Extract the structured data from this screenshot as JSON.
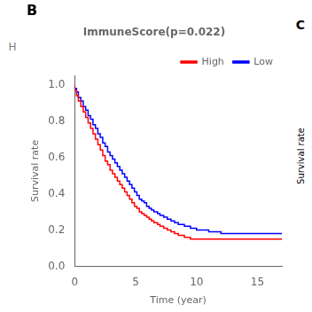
{
  "chart_data": {
    "type": "line",
    "line_style": "step",
    "title": "ImmuneScore(p=0.022)",
    "xlabel": "Time (year)",
    "ylabel": "Survival rate",
    "annotations": [
      "B",
      "H",
      "C",
      "Survival rate"
    ],
    "xlim": [
      0,
      17
    ],
    "ylim": [
      0.0,
      1.05
    ],
    "xticks": [
      0,
      5,
      10,
      15
    ],
    "yticks": [
      {
        "value": 0.0,
        "label": "0.0"
      },
      0.2,
      0.4,
      0.6,
      0.8,
      {
        "value": 1.0,
        "label": "1.0"
      }
    ],
    "grid": false,
    "legend": "upper right",
    "x": [
      0,
      0.15,
      0.3,
      0.5,
      0.7,
      0.9,
      1.1,
      1.3,
      1.5,
      1.7,
      1.9,
      2.1,
      2.3,
      2.5,
      2.7,
      2.9,
      3.1,
      3.3,
      3.5,
      3.7,
      3.9,
      4.1,
      4.3,
      4.5,
      4.7,
      4.9,
      5.1,
      5.3,
      5.5,
      5.7,
      5.9,
      6.1,
      6.3,
      6.5,
      6.8,
      7.0,
      7.3,
      7.6,
      7.9,
      8.2,
      8.5,
      9.0,
      9.5,
      10.0,
      11.0,
      12.0,
      15.0,
      17.0
    ],
    "series": [
      {
        "name": "High",
        "color": "#FF0000",
        "values": [
          1.0,
          0.97,
          0.94,
          0.91,
          0.88,
          0.85,
          0.82,
          0.79,
          0.76,
          0.73,
          0.7,
          0.67,
          0.64,
          0.61,
          0.58,
          0.56,
          0.53,
          0.51,
          0.49,
          0.47,
          0.45,
          0.43,
          0.41,
          0.39,
          0.37,
          0.35,
          0.33,
          0.32,
          0.3,
          0.29,
          0.28,
          0.27,
          0.26,
          0.25,
          0.24,
          0.23,
          0.22,
          0.21,
          0.2,
          0.19,
          0.18,
          0.17,
          0.16,
          0.15,
          0.15,
          0.15,
          0.15,
          0.15
        ]
      },
      {
        "name": "Low",
        "color": "#0000FF",
        "values": [
          1.0,
          0.98,
          0.96,
          0.93,
          0.91,
          0.88,
          0.86,
          0.83,
          0.81,
          0.78,
          0.76,
          0.73,
          0.71,
          0.68,
          0.66,
          0.63,
          0.61,
          0.59,
          0.57,
          0.55,
          0.53,
          0.51,
          0.49,
          0.47,
          0.45,
          0.43,
          0.41,
          0.39,
          0.37,
          0.36,
          0.35,
          0.33,
          0.32,
          0.31,
          0.3,
          0.29,
          0.28,
          0.27,
          0.26,
          0.25,
          0.24,
          0.23,
          0.22,
          0.21,
          0.2,
          0.19,
          0.18,
          0.18
        ]
      }
    ]
  }
}
